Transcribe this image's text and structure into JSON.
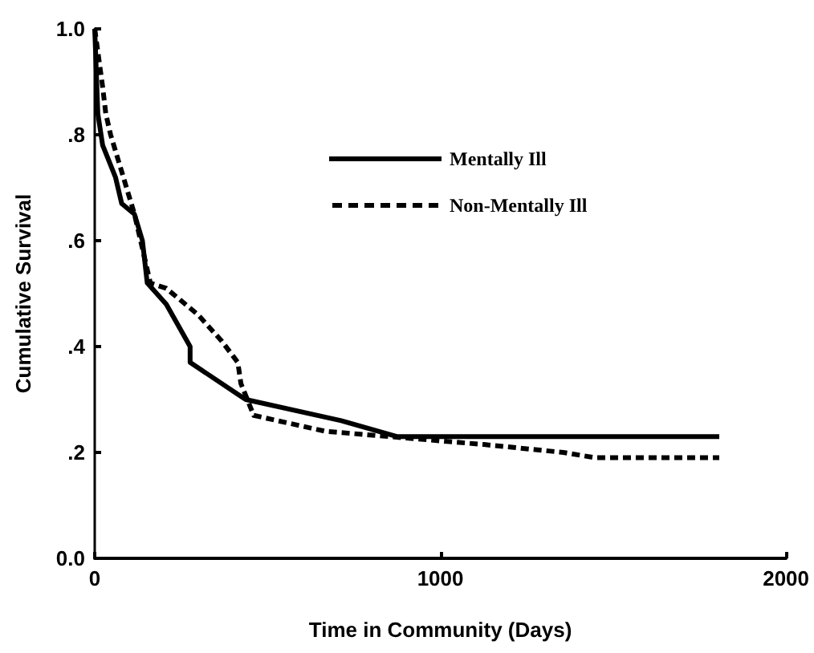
{
  "chart_data": {
    "type": "line",
    "xlabel": "Time in Community (Days)",
    "ylabel": "Cumulative Survival",
    "xlim": [
      0,
      2000
    ],
    "xticks": [
      0,
      1000,
      2000
    ],
    "ylim": [
      0,
      1.0
    ],
    "yticks": [
      {
        "value": 0,
        "label": "0.0"
      },
      {
        "value": 0.2,
        "label": ".2"
      },
      {
        "value": 0.4,
        "label": ".4"
      },
      {
        "value": 0.6,
        "label": ".6"
      },
      {
        "value": 0.8,
        "label": ".8"
      },
      {
        "value": 1.0,
        "label": "1.0"
      }
    ],
    "grid": false,
    "legend": "top right",
    "marker": "none",
    "series": [
      {
        "name": "Mentally Ill",
        "color": "#000000",
        "line_style": "solid",
        "x": [
          0,
          9,
          23,
          60,
          78,
          115,
          138,
          152,
          207,
          276,
          276,
          414,
          437,
          713,
          874,
          1807
        ],
        "values": [
          1.0,
          0.84,
          0.78,
          0.72,
          0.67,
          0.65,
          0.6,
          0.52,
          0.48,
          0.4,
          0.37,
          0.31,
          0.3,
          0.26,
          0.23,
          0.23
        ]
      },
      {
        "name": "Non-Mentally Ill",
        "color": "#000000",
        "line_style": "dashed",
        "x": [
          0,
          23,
          32,
          46,
          69,
          92,
          115,
          161,
          207,
          299,
          368,
          414,
          423,
          460,
          667,
          851,
          1126,
          1356,
          1448,
          1807
        ],
        "values": [
          1.0,
          0.89,
          0.84,
          0.8,
          0.75,
          0.7,
          0.65,
          0.52,
          0.51,
          0.46,
          0.41,
          0.37,
          0.33,
          0.27,
          0.24,
          0.23,
          0.215,
          0.2,
          0.19,
          0.19
        ]
      }
    ]
  }
}
